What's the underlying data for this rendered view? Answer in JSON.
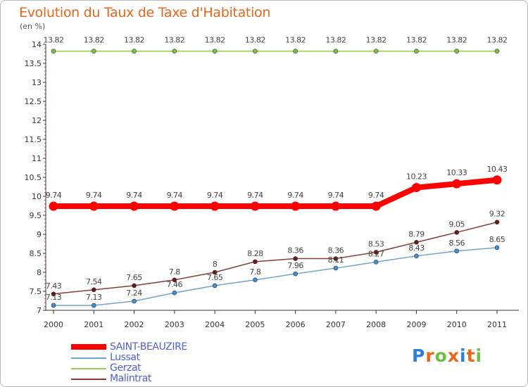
{
  "title": "Evolution du Taux de Taxe d'Habitation",
  "unit_label": "(en %)",
  "logo": {
    "letters": [
      "P",
      "r",
      "o",
      "x",
      "i",
      "t",
      "i"
    ],
    "colors": [
      "#2d7fd6",
      "#e8651a",
      "#6cbf3c",
      "#e8651a",
      "#2d7fd6",
      "#e8651a",
      "#6cbf3c"
    ]
  },
  "chart_data": {
    "type": "line",
    "title": "Evolution du Taux de Taxe d'Habitation",
    "ylabel": "(en %)",
    "xlabel": "",
    "x": [
      "2000",
      "2001",
      "2002",
      "2003",
      "2004",
      "2005",
      "2006",
      "2007",
      "2008",
      "2009",
      "2010",
      "2011"
    ],
    "ylim": [
      7,
      14
    ],
    "yticks": [
      "7",
      "7.5",
      "8",
      "8.5",
      "9",
      "9.5",
      "10",
      "10.5",
      "11",
      "11.5",
      "12",
      "12.5",
      "13",
      "13.5",
      "14"
    ],
    "grid": false,
    "legend_position": "bottom-left",
    "series": [
      {
        "name": "SAINT-BEAUZIRE",
        "color": "#ff0000",
        "point_color": "#ff0000",
        "emphasis": true,
        "values": [
          9.74,
          9.74,
          9.74,
          9.74,
          9.74,
          9.74,
          9.74,
          9.74,
          9.74,
          10.23,
          10.33,
          10.43
        ],
        "labels": [
          "9.74",
          "9.74",
          "9.74",
          "9.74",
          "9.74",
          "9.74",
          "9.74",
          "9.74",
          "9.74",
          "10.23",
          "10.33",
          "10.43"
        ]
      },
      {
        "name": "Lussat",
        "color": "#6fa3d2",
        "point_color": "#3d8fd6",
        "emphasis": false,
        "values": [
          7.13,
          7.13,
          7.24,
          7.46,
          7.65,
          7.8,
          7.96,
          8.11,
          8.27,
          8.43,
          8.56,
          8.65
        ],
        "labels": [
          "7.13",
          "7.13",
          "7.24",
          "7.46",
          "7.65",
          "7.8",
          "7.96",
          "8.11",
          "8.27",
          "8.43",
          "8.56",
          "8.65"
        ]
      },
      {
        "name": "Gerzat",
        "color": "#8fd050",
        "point_color": "#7cc242",
        "emphasis": false,
        "values": [
          13.82,
          13.82,
          13.82,
          13.82,
          13.82,
          13.82,
          13.82,
          13.82,
          13.82,
          13.82,
          13.82,
          13.82
        ],
        "labels": [
          "13.82",
          "13.82",
          "13.82",
          "13.82",
          "13.82",
          "13.82",
          "13.82",
          "13.82",
          "13.82",
          "13.82",
          "13.82",
          "13.82"
        ]
      },
      {
        "name": "Malintrat",
        "color": "#8b3a3a",
        "point_color": "#6b1a1a",
        "emphasis": false,
        "values": [
          7.43,
          7.54,
          7.65,
          7.8,
          8,
          8.28,
          8.36,
          8.36,
          8.53,
          8.79,
          9.05,
          9.32
        ],
        "labels": [
          "7.43",
          "7.54",
          "7.65",
          "7.8",
          "8",
          "8.28",
          "8.36",
          "8.36",
          "8.53",
          "8.79",
          "9.05",
          "9.32"
        ]
      }
    ]
  }
}
